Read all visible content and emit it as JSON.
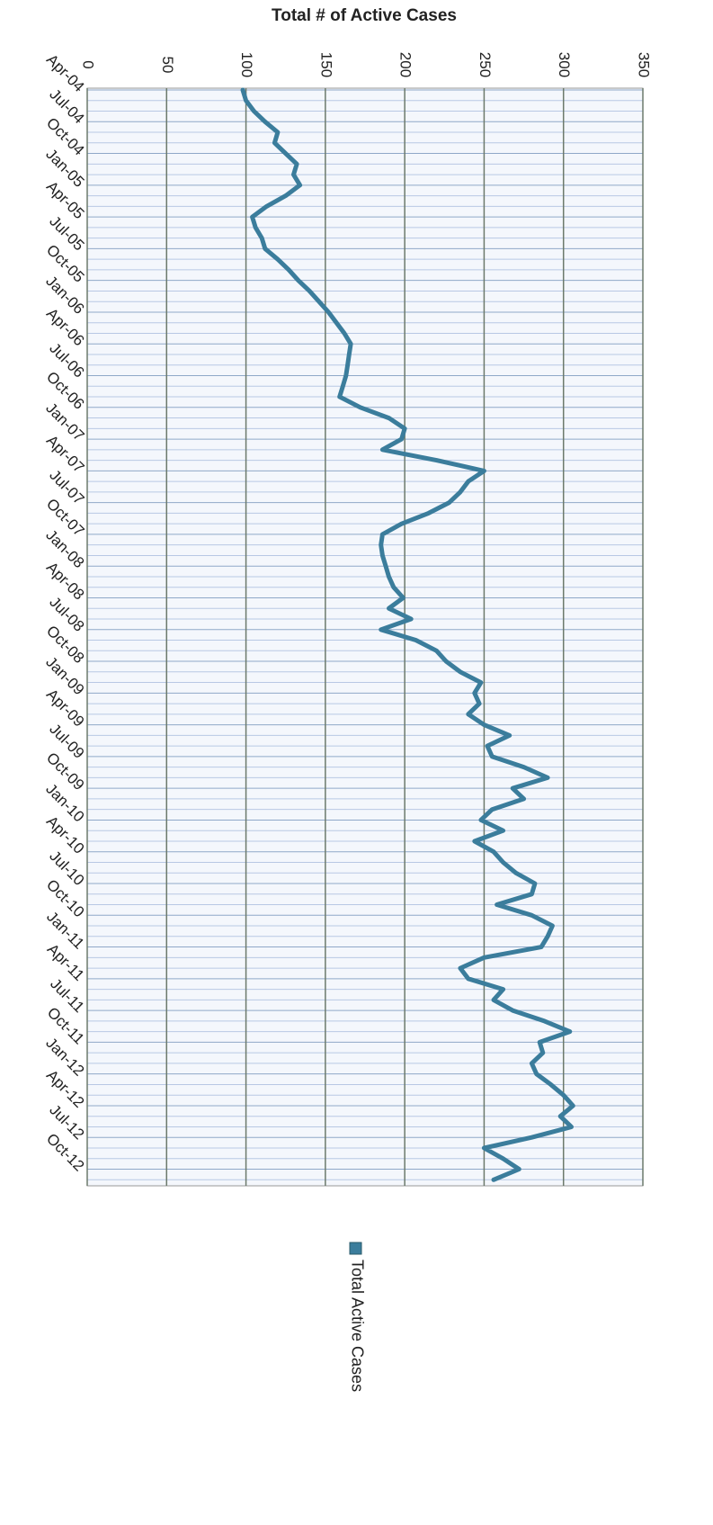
{
  "chart_data": {
    "type": "line",
    "title": "Total # of Active Cases",
    "categories": [
      "Apr-04",
      null,
      null,
      "Jul-04",
      null,
      null,
      "Oct-04",
      null,
      null,
      "Jan-05",
      null,
      null,
      "Apr-05",
      null,
      null,
      "Jul-05",
      null,
      null,
      "Oct-05",
      null,
      null,
      "Jan-06",
      null,
      null,
      "Apr-06",
      null,
      null,
      "Jul-06",
      null,
      null,
      "Oct-06",
      null,
      null,
      "Jan-07",
      null,
      null,
      "Apr-07",
      null,
      null,
      "Jul-07",
      null,
      null,
      "Oct-07",
      null,
      null,
      "Jan-08",
      null,
      null,
      "Apr-08",
      null,
      null,
      "Jul-08",
      null,
      null,
      "Oct-08",
      null,
      null,
      "Jan-09",
      null,
      null,
      "Apr-09",
      null,
      null,
      "Jul-09",
      null,
      null,
      "Oct-09",
      null,
      null,
      "Jan-10",
      null,
      null,
      "Apr-10",
      null,
      null,
      "Jul-10",
      null,
      null,
      "Oct-10",
      null,
      null,
      "Jan-11",
      null,
      null,
      "Apr-11",
      null,
      null,
      "Jul-11",
      null,
      null,
      "Oct-11",
      null,
      null,
      "Jan-12",
      null,
      null,
      "Apr-12",
      null,
      null,
      "Jul-12",
      null,
      null,
      "Oct-12",
      null
    ],
    "series": [
      {
        "name": "Total Active Cases",
        "color": "#3b7d9c",
        "values": [
          98,
          100,
          105,
          112,
          120,
          118,
          125,
          132,
          130,
          134,
          125,
          113,
          104,
          106,
          110,
          112,
          120,
          127,
          133,
          140,
          146,
          152,
          157,
          162,
          166,
          165,
          164,
          163,
          161,
          159,
          172,
          190,
          200,
          198,
          186,
          220,
          250,
          240,
          235,
          228,
          215,
          198,
          186,
          185,
          186,
          188,
          190,
          193,
          199,
          190,
          204,
          185,
          207,
          220,
          226,
          235,
          248,
          244,
          247,
          240,
          250,
          266,
          252,
          255,
          275,
          290,
          268,
          275,
          255,
          248,
          262,
          244,
          256,
          262,
          270,
          282,
          280,
          258,
          280,
          293,
          290,
          286,
          250,
          235,
          240,
          262,
          256,
          268,
          288,
          304,
          285,
          287,
          280,
          283,
          292,
          300,
          306,
          298,
          305,
          280,
          250,
          262,
          272,
          256
        ]
      }
    ],
    "ylim": [
      0,
      350
    ],
    "yticks": [
      0,
      50,
      100,
      150,
      200,
      250,
      300,
      350
    ],
    "grid": true
  }
}
